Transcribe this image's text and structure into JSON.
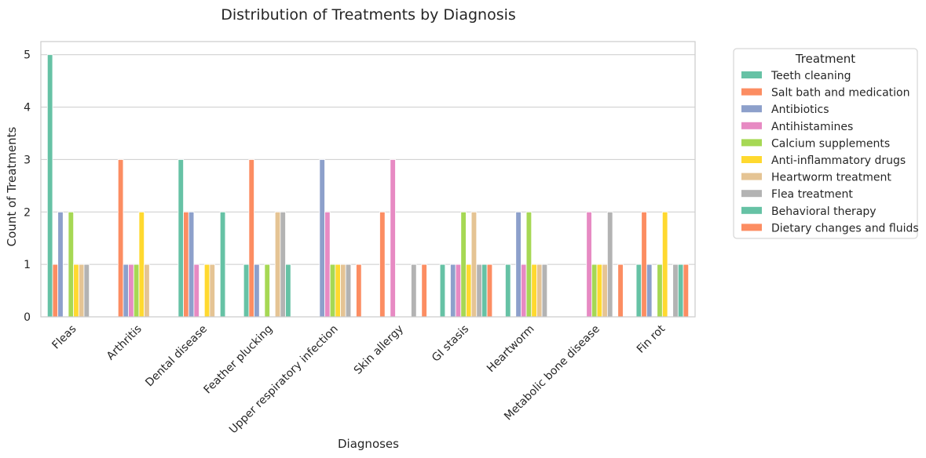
{
  "chart_data": {
    "type": "bar",
    "title": "Distribution of Treatments by Diagnosis",
    "xlabel": "Diagnoses",
    "ylabel": "Count of Treatments",
    "ylim": [
      0,
      5.25
    ],
    "yticks": [
      0,
      1,
      2,
      3,
      4,
      5
    ],
    "grid": true,
    "legend_title": "Treatment",
    "legend_position": "outside-right",
    "categories": [
      "Fleas",
      "Arthritis",
      "Dental disease",
      "Feather plucking",
      "Upper respiratory infection",
      "Skin allergy",
      "GI stasis",
      "Heartworm",
      "Metabolic bone disease",
      "Fin rot"
    ],
    "series": [
      {
        "name": "Teeth cleaning",
        "color": "#66c2a5",
        "values": [
          5,
          0,
          3,
          1,
          0,
          0,
          1,
          1,
          0,
          1
        ]
      },
      {
        "name": "Salt bath and medication",
        "color": "#fc8d62",
        "values": [
          1,
          3,
          2,
          3,
          0,
          2,
          0,
          0,
          0,
          2
        ]
      },
      {
        "name": "Antibiotics",
        "color": "#8da0cb",
        "values": [
          2,
          1,
          2,
          1,
          3,
          0,
          1,
          2,
          0,
          1
        ]
      },
      {
        "name": "Antihistamines",
        "color": "#e78ac3",
        "values": [
          0,
          1,
          1,
          0,
          2,
          3,
          1,
          1,
          2,
          0
        ]
      },
      {
        "name": "Calcium supplements",
        "color": "#a6d854",
        "values": [
          2,
          1,
          0,
          1,
          1,
          0,
          2,
          2,
          1,
          1
        ]
      },
      {
        "name": "Anti-inflammatory drugs",
        "color": "#ffd92f",
        "values": [
          1,
          2,
          1,
          0,
          1,
          0,
          1,
          1,
          1,
          2
        ]
      },
      {
        "name": "Heartworm treatment",
        "color": "#e5c494",
        "values": [
          1,
          1,
          1,
          2,
          1,
          0,
          2,
          1,
          1,
          0
        ]
      },
      {
        "name": "Flea treatment",
        "color": "#b3b3b3",
        "values": [
          1,
          0,
          0,
          2,
          1,
          1,
          1,
          1,
          2,
          1
        ]
      },
      {
        "name": "Behavioral therapy",
        "color": "#66c2a5",
        "values": [
          0,
          0,
          2,
          1,
          0,
          0,
          1,
          0,
          0,
          1
        ]
      },
      {
        "name": "Dietary changes and fluids",
        "color": "#fc8d62",
        "values": [
          0,
          0,
          0,
          0,
          1,
          1,
          1,
          0,
          1,
          1
        ]
      }
    ]
  }
}
